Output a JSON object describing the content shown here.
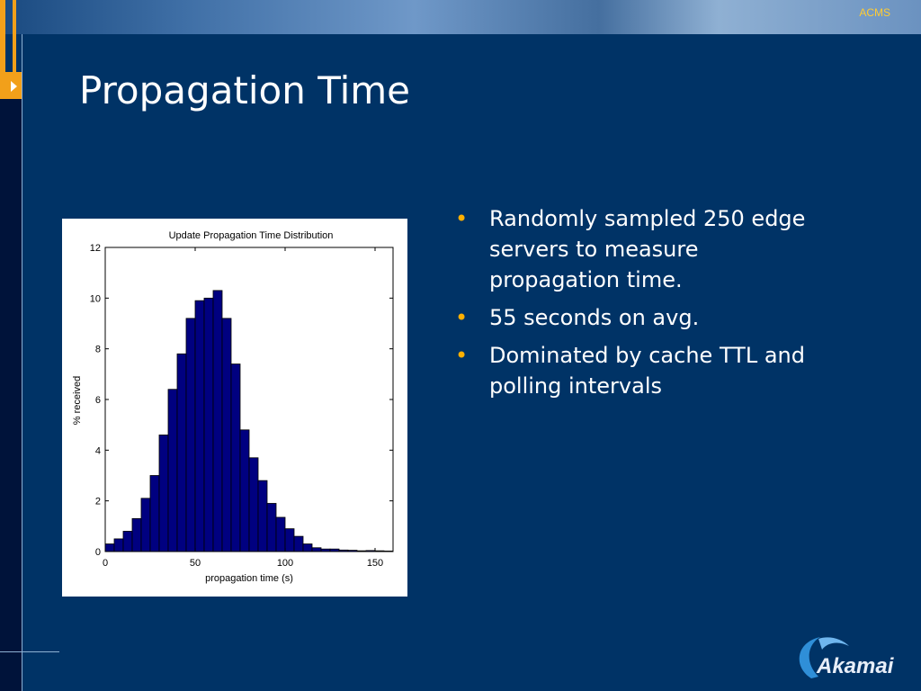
{
  "header": {
    "corner_label": "ACMS"
  },
  "slide": {
    "title": "Propagation Time",
    "bullets": [
      "Randomly sampled 250 edge servers to measure propagation time.",
      "55 seconds on avg.",
      "Dominated by cache TTL and polling intervals"
    ]
  },
  "logo": {
    "text": "Akamai"
  },
  "colors": {
    "background": "#003366",
    "accent": "#f2a01a",
    "bar_fill": "#000080",
    "bullet": "#ffb000"
  },
  "chart_data": {
    "type": "bar",
    "title": "Update Propagation Time Distribution",
    "xlabel": "propagation time (s)",
    "ylabel": "% received",
    "xlim": [
      0,
      160
    ],
    "ylim": [
      0,
      12
    ],
    "xticks": [
      0,
      50,
      100,
      150
    ],
    "yticks": [
      0,
      2,
      4,
      6,
      8,
      10,
      12
    ],
    "bin_width": 5,
    "bin_centers": [
      2.5,
      7.5,
      12.5,
      17.5,
      22.5,
      27.5,
      32.5,
      37.5,
      42.5,
      47.5,
      52.5,
      57.5,
      62.5,
      67.5,
      72.5,
      77.5,
      82.5,
      87.5,
      92.5,
      97.5,
      102.5,
      107.5,
      112.5,
      117.5,
      122.5,
      127.5,
      132.5,
      137.5,
      142.5,
      147.5,
      152.5,
      157.5
    ],
    "values": [
      0.3,
      0.5,
      0.8,
      1.3,
      2.1,
      3.0,
      4.6,
      6.4,
      7.8,
      9.2,
      9.9,
      10.0,
      10.3,
      9.2,
      7.4,
      4.8,
      3.7,
      2.8,
      1.9,
      1.35,
      0.9,
      0.6,
      0.3,
      0.15,
      0.1,
      0.1,
      0.06,
      0.05,
      0.03,
      0.04,
      0.03,
      0.02
    ],
    "grid": false
  }
}
